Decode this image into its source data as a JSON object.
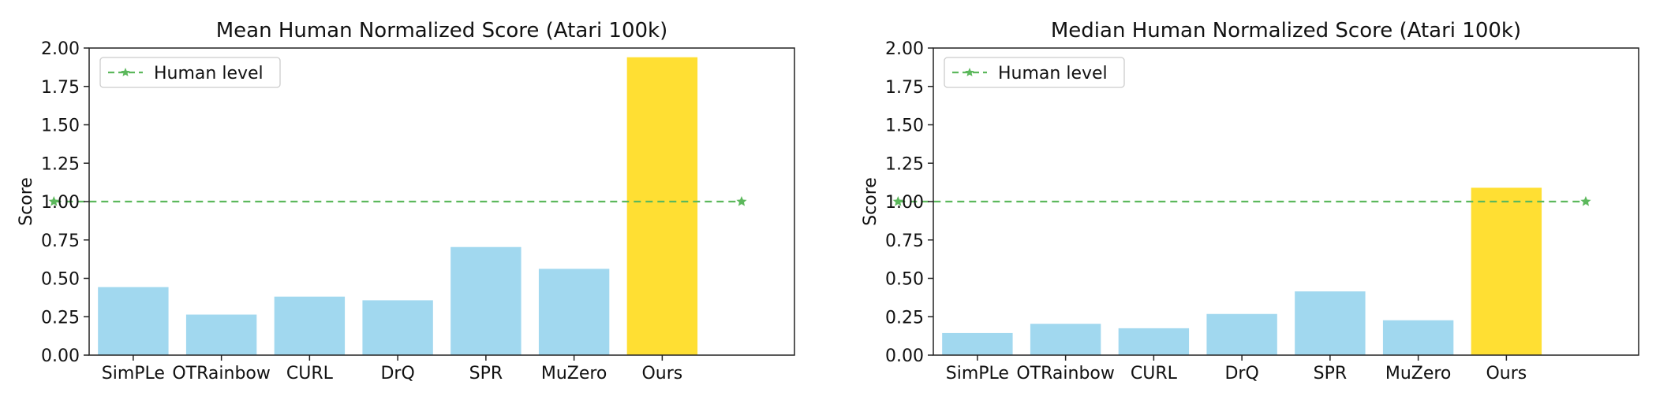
{
  "chart_data": [
    {
      "type": "bar",
      "title": "Mean Human Normalized Score (Atari 100k)",
      "xlabel": "",
      "ylabel": "Score",
      "ylim": [
        0,
        2.0
      ],
      "yticks": [
        "0.00",
        "0.25",
        "0.50",
        "0.75",
        "1.00",
        "1.25",
        "1.50",
        "1.75",
        "2.00"
      ],
      "categories": [
        "SimPLe",
        "OTRainbow",
        "CURL",
        "DrQ",
        "SPR",
        "MuZero",
        "Ours"
      ],
      "values": [
        0.443,
        0.264,
        0.381,
        0.357,
        0.704,
        0.562,
        1.94
      ],
      "bar_colors": [
        "#a1d8ef",
        "#a1d8ef",
        "#a1d8ef",
        "#a1d8ef",
        "#a1d8ef",
        "#a1d8ef",
        "#ffdf33"
      ],
      "reference_line": {
        "label": "Human level",
        "value": 1.0,
        "color": "#5cb85c"
      },
      "legend": {
        "entries": [
          "Human level"
        ],
        "placement": "upper-left"
      },
      "grid": false
    },
    {
      "type": "bar",
      "title": "Median Human Normalized Score (Atari 100k)",
      "xlabel": "",
      "ylabel": "Score",
      "ylim": [
        0,
        2.0
      ],
      "yticks": [
        "0.00",
        "0.25",
        "0.50",
        "0.75",
        "1.00",
        "1.25",
        "1.50",
        "1.75",
        "2.00"
      ],
      "categories": [
        "SimPLe",
        "OTRainbow",
        "CURL",
        "DrQ",
        "SPR",
        "MuZero",
        "Ours"
      ],
      "values": [
        0.144,
        0.204,
        0.175,
        0.268,
        0.415,
        0.227,
        1.09
      ],
      "bar_colors": [
        "#a1d8ef",
        "#a1d8ef",
        "#a1d8ef",
        "#a1d8ef",
        "#a1d8ef",
        "#a1d8ef",
        "#ffdf33"
      ],
      "reference_line": {
        "label": "Human level",
        "value": 1.0,
        "color": "#5cb85c"
      },
      "legend": {
        "entries": [
          "Human level"
        ],
        "placement": "upper-left"
      },
      "grid": false
    }
  ]
}
